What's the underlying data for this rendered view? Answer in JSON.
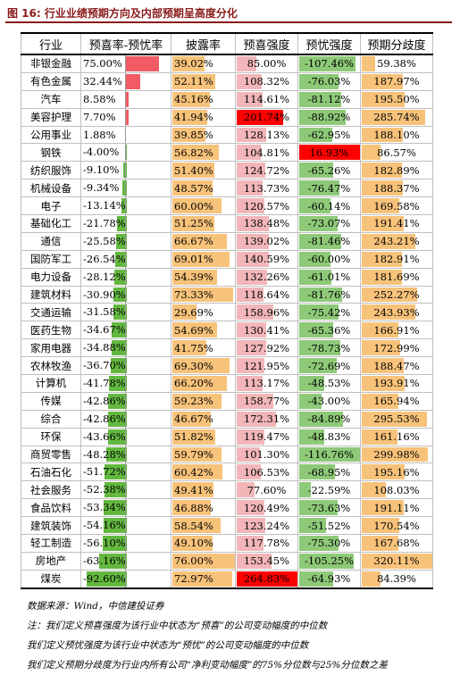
{
  "title": "图 16: 行业业绩预期方向及内部预期呈高度分化",
  "columns": [
    "行业",
    "预喜率-预忧率",
    "披露率",
    "预喜强度",
    "预忧强度",
    "预期分歧度"
  ],
  "colors": {
    "sentiment_pos": "#f15b63",
    "sentiment_neg": "#63b83f",
    "disclosure": "#f7c27a",
    "pos_strength": "#f2b6b8",
    "neg_strength": "#8ec978",
    "dispersion": "#f7c27a",
    "highlight_red": "#ff0000",
    "title_red": "#8a1a1a"
  },
  "chart_data": {
    "type": "table",
    "rows": [
      {
        "industry": "非银金融",
        "net": 75.0,
        "disclosure": 39.02,
        "pos": 85.0,
        "neg": -107.46,
        "disp": 59.38
      },
      {
        "industry": "有色金属",
        "net": 32.44,
        "disclosure": 52.11,
        "pos": 108.32,
        "neg": -76.03,
        "disp": 187.97
      },
      {
        "industry": "汽车",
        "net": 8.58,
        "disclosure": 45.16,
        "pos": 114.61,
        "neg": -81.12,
        "disp": 195.5
      },
      {
        "industry": "美容护理",
        "net": 7.7,
        "disclosure": 41.94,
        "pos": 201.74,
        "neg": -88.92,
        "disp": 285.74
      },
      {
        "industry": "公用事业",
        "net": 1.88,
        "disclosure": 39.85,
        "pos": 128.13,
        "neg": -62.95,
        "disp": 188.1
      },
      {
        "industry": "钢铁",
        "net": -4.0,
        "disclosure": 56.82,
        "pos": 104.81,
        "neg": 16.93,
        "disp": 86.57
      },
      {
        "industry": "纺织服饰",
        "net": -9.1,
        "disclosure": 51.4,
        "pos": 124.72,
        "neg": -65.26,
        "disp": 182.89
      },
      {
        "industry": "机械设备",
        "net": -9.34,
        "disclosure": 48.57,
        "pos": 113.73,
        "neg": -76.47,
        "disp": 188.37
      },
      {
        "industry": "电子",
        "net": -13.14,
        "disclosure": 60.0,
        "pos": 120.57,
        "neg": -60.14,
        "disp": 169.58
      },
      {
        "industry": "基础化工",
        "net": -21.78,
        "disclosure": 51.25,
        "pos": 138.48,
        "neg": -73.07,
        "disp": 191.41
      },
      {
        "industry": "通信",
        "net": -25.58,
        "disclosure": 66.67,
        "pos": 139.02,
        "neg": -81.46,
        "disp": 243.21
      },
      {
        "industry": "国防军工",
        "net": -26.54,
        "disclosure": 69.01,
        "pos": 140.59,
        "neg": -60.0,
        "disp": 182.91
      },
      {
        "industry": "电力设备",
        "net": -28.12,
        "disclosure": 54.39,
        "pos": 132.26,
        "neg": -61.01,
        "disp": 181.69
      },
      {
        "industry": "建筑材料",
        "net": -30.9,
        "disclosure": 73.33,
        "pos": 118.64,
        "neg": -81.76,
        "disp": 252.27
      },
      {
        "industry": "交通运输",
        "net": -31.58,
        "disclosure": 29.69,
        "pos": 158.96,
        "neg": -75.42,
        "disp": 243.93
      },
      {
        "industry": "医药生物",
        "net": -34.67,
        "disclosure": 54.69,
        "pos": 130.41,
        "neg": -65.36,
        "disp": 166.91
      },
      {
        "industry": "家用电器",
        "net": -34.88,
        "disclosure": 41.75,
        "pos": 127.92,
        "neg": -78.73,
        "disp": 172.99
      },
      {
        "industry": "农林牧渔",
        "net": -36.7,
        "disclosure": 69.3,
        "pos": 121.95,
        "neg": -72.69,
        "disp": 188.47
      },
      {
        "industry": "计算机",
        "net": -41.78,
        "disclosure": 66.2,
        "pos": 113.17,
        "neg": -48.53,
        "disp": 193.91
      },
      {
        "industry": "传媒",
        "net": -42.86,
        "disclosure": 59.23,
        "pos": 158.77,
        "neg": -43.0,
        "disp": 165.94
      },
      {
        "industry": "综合",
        "net": -42.86,
        "disclosure": 46.67,
        "pos": 172.31,
        "neg": -84.89,
        "disp": 295.53
      },
      {
        "industry": "环保",
        "net": -43.66,
        "disclosure": 51.82,
        "pos": 119.47,
        "neg": -48.83,
        "disp": 161.16
      },
      {
        "industry": "商贸零售",
        "net": -48.28,
        "disclosure": 59.79,
        "pos": 101.3,
        "neg": -116.76,
        "disp": 299.98
      },
      {
        "industry": "石油石化",
        "net": -51.72,
        "disclosure": 60.42,
        "pos": 106.53,
        "neg": -68.95,
        "disp": 195.16
      },
      {
        "industry": "社会服务",
        "net": -52.38,
        "disclosure": 49.41,
        "pos": 77.6,
        "neg": -22.59,
        "disp": 108.03
      },
      {
        "industry": "食品饮料",
        "net": -53.34,
        "disclosure": 46.88,
        "pos": 120.49,
        "neg": -73.63,
        "disp": 191.11
      },
      {
        "industry": "建筑装饰",
        "net": -54.16,
        "disclosure": 58.54,
        "pos": 123.24,
        "neg": -51.52,
        "disp": 170.54
      },
      {
        "industry": "轻工制造",
        "net": -56.1,
        "disclosure": 49.1,
        "pos": 117.78,
        "neg": -75.3,
        "disp": 167.68
      },
      {
        "industry": "房地产",
        "net": -63.16,
        "disclosure": 76.0,
        "pos": 153.45,
        "neg": -105.25,
        "disp": 320.11
      },
      {
        "industry": "煤炭",
        "net": -92.6,
        "disclosure": 72.97,
        "pos": 264.83,
        "neg": -64.93,
        "disp": 84.39
      }
    ]
  },
  "notes": [
    "数据来源：Wind，中信建投证券",
    "注：我们定义预喜强度为该行业中状态为“预喜”的公司变动幅度的中位数",
    "我们定义预忧强度为该行业中状态为“预忧”的公司变动幅度的中位数",
    "我们定义预期分歧度为行业内所有公司“净利变动幅度”的75%分位数与25%分位数之差"
  ]
}
